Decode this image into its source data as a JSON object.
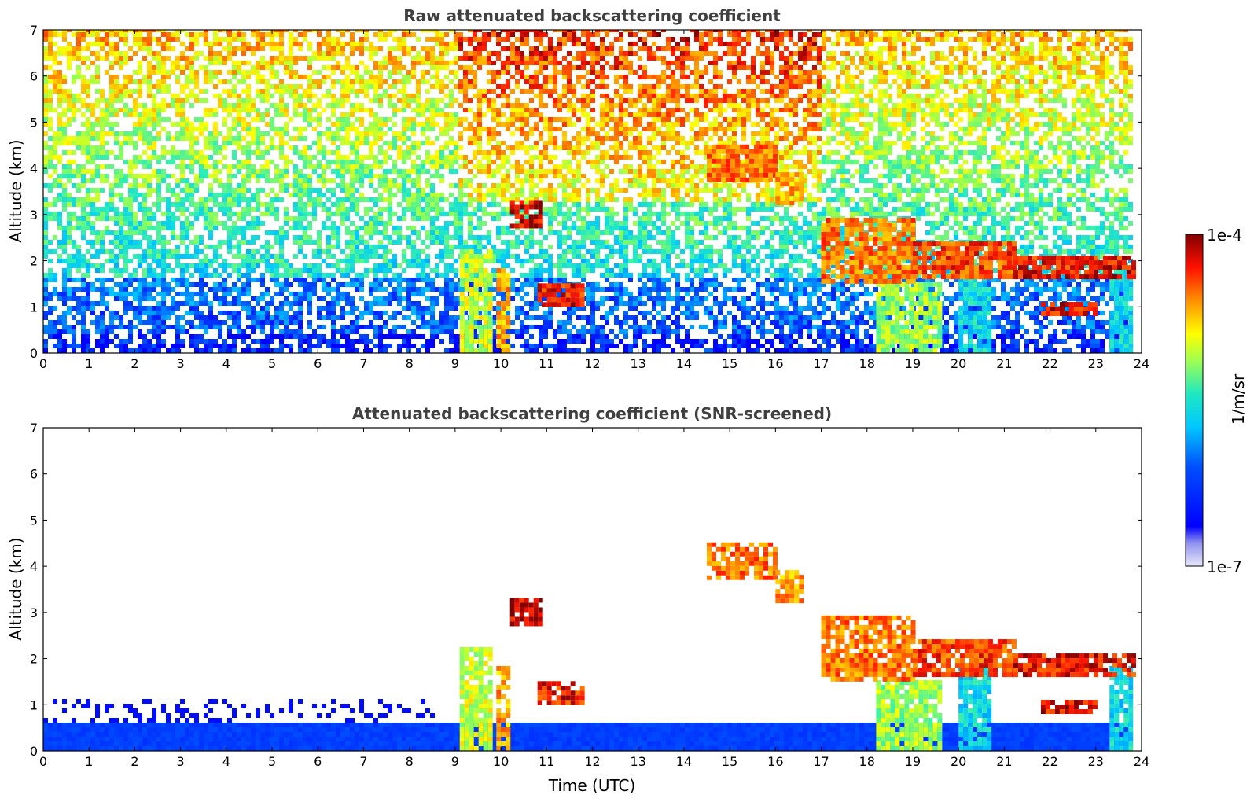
{
  "chart_data": [
    {
      "type": "heatmap",
      "title": "Raw attenuated backscattering coefficient",
      "xlabel": "",
      "ylabel": "Altitude (km)",
      "xlim": [
        0,
        24
      ],
      "ylim": [
        0,
        7
      ],
      "xticks": [
        0,
        1,
        2,
        3,
        4,
        5,
        6,
        7,
        8,
        9,
        10,
        11,
        12,
        13,
        14,
        15,
        16,
        17,
        18,
        19,
        20,
        21,
        22,
        23,
        24
      ],
      "yticks": [
        0,
        1,
        2,
        3,
        4,
        5,
        6,
        7
      ],
      "grid": false,
      "colorscale": "jet",
      "features": [
        {
          "kind": "noise-background",
          "description": "speckled noisy signal everywhere"
        },
        {
          "kind": "boundary-layer",
          "x": [
            0,
            24
          ],
          "y": [
            0,
            0.5
          ]
        },
        {
          "kind": "precip-columns",
          "x": [
            9.0,
            10.2
          ],
          "y": [
            0,
            2.3
          ]
        },
        {
          "kind": "cloud-base-layer",
          "x": [
            17.0,
            23.8
          ],
          "y": [
            1.2,
            3.2
          ]
        },
        {
          "kind": "elevated-layer",
          "x": [
            14.5,
            16.2
          ],
          "y": [
            3.6,
            4.5
          ]
        }
      ]
    },
    {
      "type": "heatmap",
      "title": "Attenuated backscattering coefficient (SNR-screened)",
      "xlabel": "Time (UTC)",
      "ylabel": "Altitude (km)",
      "xlim": [
        0,
        24
      ],
      "ylim": [
        0,
        7
      ],
      "xticks": [
        0,
        1,
        2,
        3,
        4,
        5,
        6,
        7,
        8,
        9,
        10,
        11,
        12,
        13,
        14,
        15,
        16,
        17,
        18,
        19,
        20,
        21,
        22,
        23,
        24
      ],
      "yticks": [
        0,
        1,
        2,
        3,
        4,
        5,
        6,
        7
      ],
      "grid": false,
      "colorscale": "jet",
      "features": [
        {
          "kind": "boundary-layer",
          "x": [
            0,
            24
          ],
          "y": [
            0,
            1.1
          ]
        },
        {
          "kind": "precip-columns",
          "x": [
            9.0,
            10.2
          ],
          "y": [
            0,
            2.4
          ]
        },
        {
          "kind": "cloud-base-layer",
          "x": [
            17.0,
            23.8
          ],
          "y": [
            1.2,
            3.2
          ]
        },
        {
          "kind": "elevated-layer",
          "x": [
            14.5,
            16.2
          ],
          "y": [
            3.6,
            4.5
          ]
        }
      ]
    }
  ],
  "colorbar": {
    "label": "1/m/sr",
    "max_label": "1e-4",
    "min_label": "1e-7",
    "colors": [
      "#e6e6f8",
      "#0000ff",
      "#00aaff",
      "#20e0c0",
      "#80ff60",
      "#ffff00",
      "#ff8000",
      "#ff0000",
      "#800000"
    ]
  }
}
